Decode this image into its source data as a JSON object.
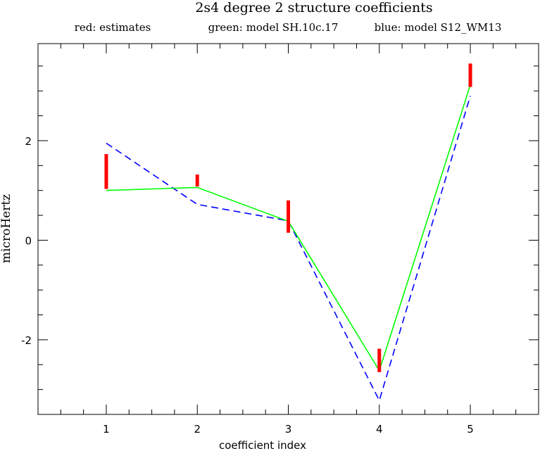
{
  "chart_data": {
    "type": "line",
    "title": "2s4 degree 2 structure coefficients",
    "xlabel": "coefficient index",
    "ylabel": "microHertz",
    "xlim": [
      0.25,
      5.75
    ],
    "ylim": [
      -3.5,
      3.95
    ],
    "x_ticks": [
      1,
      2,
      3,
      4,
      5
    ],
    "x_tick_labels": [
      "1",
      "2",
      "3",
      "4",
      "5"
    ],
    "y_ticks": [
      -2,
      0,
      2
    ],
    "y_tick_labels": [
      "-2",
      "0",
      "2"
    ],
    "grid": false,
    "legend": [
      {
        "text": "red: estimates",
        "color": "#ff0000"
      },
      {
        "text": "green: model SH.10c.17",
        "color": "#00ff00"
      },
      {
        "text": "blue: model S12_WM13",
        "color": "#0000ff"
      }
    ],
    "estimates": {
      "color": "#ff0000",
      "x": [
        1,
        2,
        3,
        4,
        5
      ],
      "low": [
        1.03,
        1.08,
        0.15,
        -2.65,
        3.08
      ],
      "high": [
        1.73,
        1.32,
        0.8,
        -2.18,
        3.55
      ]
    },
    "series": [
      {
        "color": "#00ff00",
        "style": "solid",
        "x": [
          1,
          2,
          3,
          4,
          5
        ],
        "values": [
          1.0,
          1.06,
          0.38,
          -2.62,
          3.12
        ]
      },
      {
        "color": "#0000ff",
        "style": "dashed",
        "x": [
          1,
          2,
          3,
          4,
          5
        ],
        "values": [
          1.95,
          0.72,
          0.39,
          -3.22,
          2.9
        ]
      }
    ]
  }
}
